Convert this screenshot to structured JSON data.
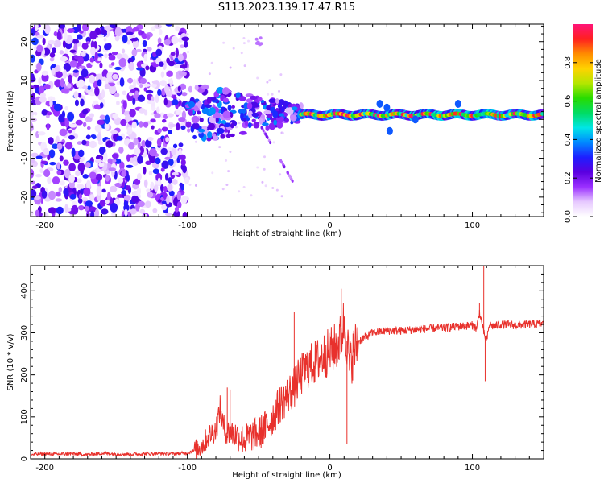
{
  "figure_title": "S113.2023.139.17.47.R15",
  "chart_data": [
    {
      "type": "heatmap",
      "id": "spectrogram",
      "title": "S113.2023.139.17.47.R15",
      "xlabel": "Height of straight line (km)",
      "ylabel": "Frequency (Hz)",
      "xlim": [
        -210,
        150
      ],
      "ylim": [
        -25,
        24.5
      ],
      "x_ticks": [
        -200,
        -100,
        0,
        100
      ],
      "x_tick_labels": [
        "-200",
        "-100",
        "0",
        "100"
      ],
      "y_ticks": [
        -20,
        -10,
        0,
        10,
        20
      ],
      "y_tick_labels": [
        "-20",
        "-10",
        "0",
        "10",
        "20"
      ],
      "colorbar": {
        "label": "Normalized spectral amplitude",
        "range": [
          0.0,
          1.0
        ],
        "ticks": [
          0.0,
          0.2,
          0.4,
          0.6,
          0.8
        ],
        "tick_labels": [
          "0.0",
          "0.2",
          "0.4",
          "0.6",
          "0.8"
        ],
        "colors": [
          "#ffffff",
          "#e6c8ff",
          "#9b30ff",
          "#5a00e0",
          "#1e1eff",
          "#0088ff",
          "#00e6e6",
          "#00dc64",
          "#28dc00",
          "#b4e600",
          "#ffd200",
          "#ff8c00",
          "#ff2020",
          "#ff1478"
        ]
      },
      "description_regions": [
        {
          "x_range": [
            -210,
            -100
          ],
          "f_range": [
            -25,
            24.5
          ],
          "amplitude_range": [
            0.05,
            0.35
          ],
          "kind": "broadband noise"
        },
        {
          "x_range": [
            -100,
            -20
          ],
          "f_range": [
            -10,
            10
          ],
          "amplitude_range": [
            0.1,
            0.5
          ],
          "kind": "scattered signal"
        },
        {
          "x_range": [
            -20,
            150
          ],
          "f_range": [
            -1,
            3
          ],
          "amplitude_range": [
            0.3,
            1.0
          ],
          "kind": "narrow tonal band near 1 Hz"
        }
      ]
    },
    {
      "type": "line",
      "id": "snr",
      "xlabel": "Height of straight line (km)",
      "ylabel": "SNR (10 * v/v)",
      "xlim": [
        -210,
        150
      ],
      "ylim": [
        0,
        460
      ],
      "x_ticks": [
        -200,
        -100,
        0,
        100
      ],
      "x_tick_labels": [
        "-200",
        "-100",
        "0",
        "100"
      ],
      "y_ticks": [
        0,
        100,
        200,
        300,
        400
      ],
      "y_tick_labels": [
        "0",
        "100",
        "200",
        "300",
        "400"
      ],
      "line_color": "#e8312c",
      "series": [
        {
          "name": "SNR",
          "x": [
            -210,
            -200,
            -190,
            -180,
            -170,
            -160,
            -150,
            -140,
            -130,
            -120,
            -110,
            -100,
            -95,
            -90,
            -85,
            -80,
            -77,
            -75,
            -72,
            -70,
            -65,
            -60,
            -55,
            -50,
            -45,
            -40,
            -35,
            -30,
            -25,
            -20,
            -15,
            -10,
            -5,
            0,
            5,
            8,
            10,
            12,
            14,
            16,
            20,
            25,
            30,
            40,
            50,
            60,
            70,
            80,
            90,
            100,
            103,
            105,
            108,
            110,
            112,
            115,
            120,
            130,
            140,
            150
          ],
          "values": [
            10,
            12,
            11,
            12,
            10,
            13,
            12,
            11,
            12,
            13,
            12,
            14,
            20,
            30,
            55,
            70,
            120,
            80,
            60,
            65,
            55,
            45,
            55,
            60,
            75,
            100,
            130,
            150,
            170,
            200,
            220,
            230,
            245,
            255,
            270,
            290,
            330,
            280,
            220,
            250,
            280,
            290,
            300,
            305,
            305,
            308,
            310,
            312,
            315,
            318,
            310,
            350,
            300,
            280,
            320,
            315,
            320,
            318,
            320,
            322
          ]
        }
      ],
      "spikes": [
        {
          "x": -72,
          "value": 170
        },
        {
          "x": -70,
          "value": 165
        },
        {
          "x": -25,
          "value": 350
        },
        {
          "x": 8,
          "value": 405
        },
        {
          "x": 12,
          "value": 35
        },
        {
          "x": 105,
          "value": 370
        },
        {
          "x": 108,
          "value": 460
        },
        {
          "x": 109,
          "value": 185
        }
      ]
    }
  ]
}
